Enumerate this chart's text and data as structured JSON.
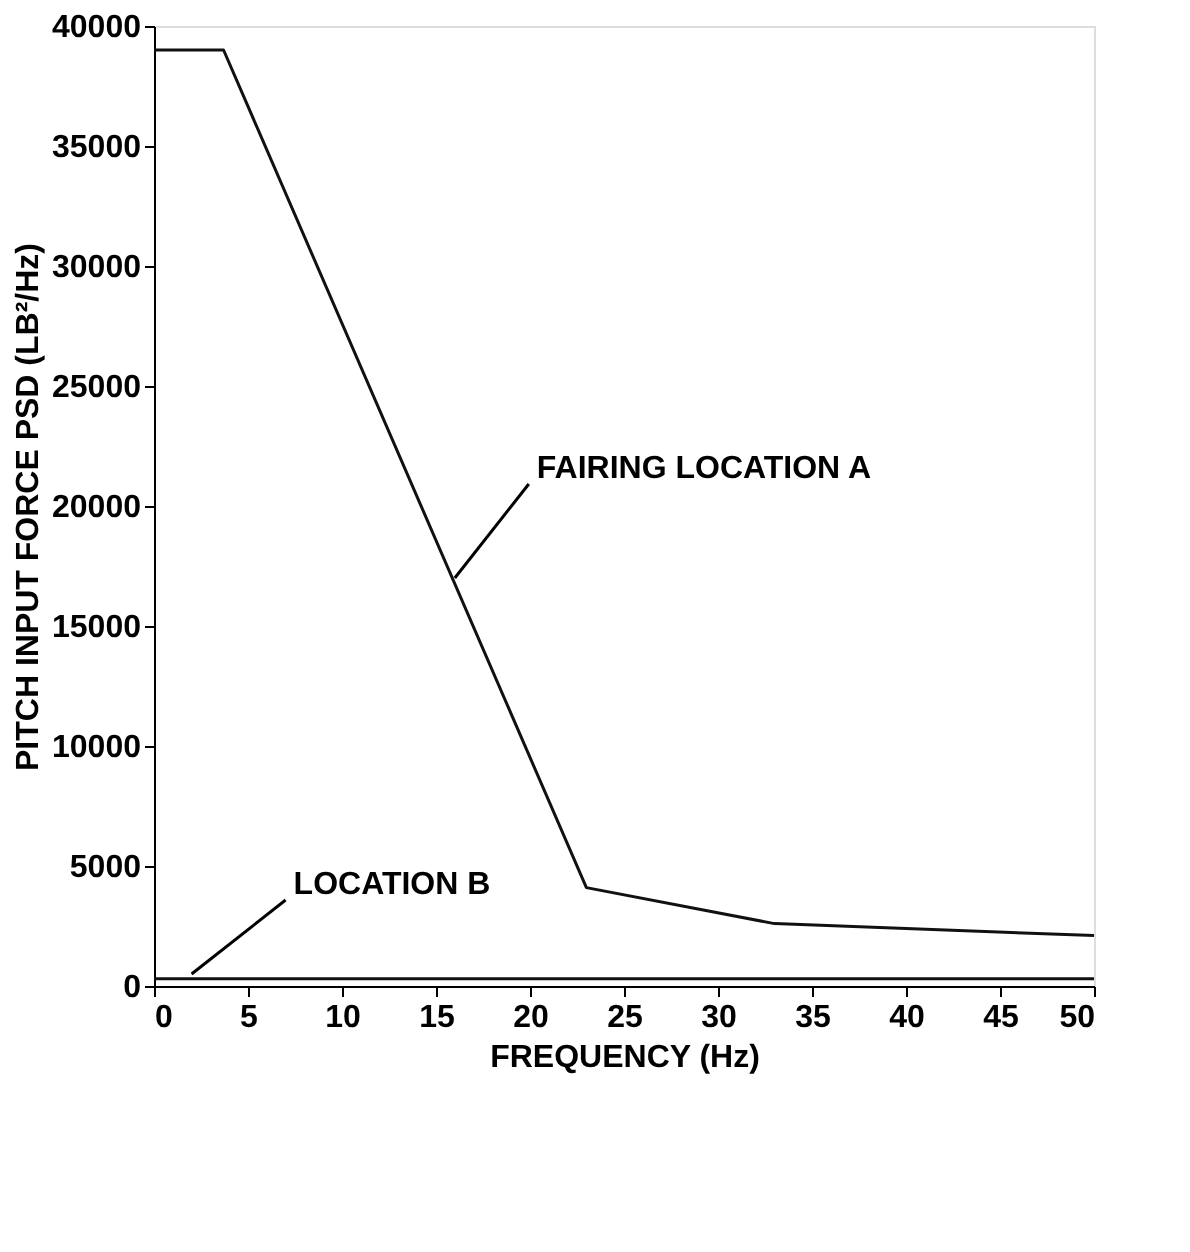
{
  "chart_data": {
    "type": "line",
    "xlabel": "FREQUENCY (Hz)",
    "ylabel": "PITCH INPUT FORCE PSD (LB²/Hz)",
    "xlim": [
      0,
      50
    ],
    "xticks": [
      0,
      5,
      10,
      15,
      20,
      25,
      30,
      35,
      40,
      45,
      50
    ],
    "ylim": [
      0,
      40000
    ],
    "yticks": [
      0,
      5000,
      10000,
      15000,
      20000,
      25000,
      30000,
      35000,
      40000
    ],
    "grid": false,
    "marker": "none",
    "line_style": "solid",
    "series": [
      {
        "color": "#111111",
        "x": [
          0,
          3.7,
          23,
          33,
          50
        ],
        "values": [
          39000,
          39000,
          4100,
          2600,
          2100
        ]
      },
      {
        "color": "#111111",
        "x": [
          0,
          50
        ],
        "values": [
          300,
          300
        ]
      }
    ],
    "annotations": [
      {
        "text": "FAIRING LOCATION A",
        "x": 16,
        "y": 17000
      },
      {
        "text": "LOCATION B",
        "x": 2,
        "y": 500
      }
    ]
  }
}
